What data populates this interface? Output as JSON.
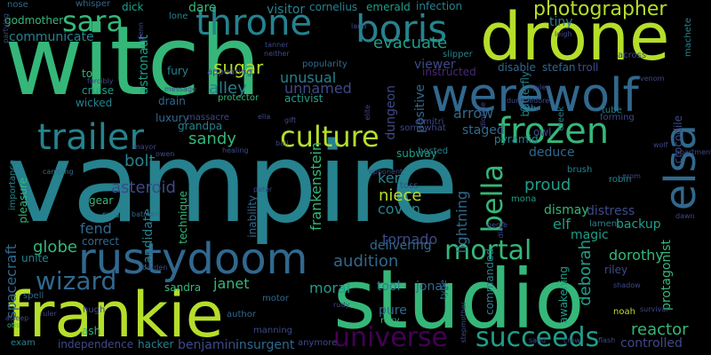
{
  "words": [
    "vampire",
    "witch",
    "studio",
    "drone",
    "frankie",
    "werewolf",
    "rustydoom",
    "throne",
    "boris",
    "frozen",
    "trailer",
    "culture",
    "elsa",
    "universe",
    "succeeds",
    "mortal",
    "wizard",
    "bella",
    "sara",
    "photographer",
    "audition",
    "globe",
    "spacecraft",
    "frankenstein",
    "evacuate",
    "sandy",
    "reactor",
    "deborah",
    "dorothy",
    "unnamed",
    "alley",
    "unusual",
    "sugar",
    "asteroid",
    "bolt",
    "lightning",
    "arrow",
    "candidate",
    "janet",
    "niece",
    "coven",
    "kent",
    "fend",
    "moral",
    "tornado",
    "proud",
    "elf",
    "distress",
    "backup",
    "dismay",
    "delivering",
    "jonas",
    "tool",
    "pure",
    "staged",
    "communicate",
    "tiny",
    "viewer",
    "astronaut",
    "dare",
    "visitor",
    "cornelius",
    "emerald",
    "infection",
    "godmother",
    "whisper",
    "dick",
    "nose",
    "toll",
    "fury",
    "cruise",
    "wicked",
    "drain",
    "luxury",
    "grandpa",
    "activist",
    "protector",
    "pyramid",
    "deduce",
    "owl",
    "magic",
    "riley",
    "sandra",
    "motor",
    "insurgent",
    "benjamin",
    "hacker",
    "independence",
    "ash",
    "exam",
    "author",
    "roxy",
    "noah",
    "controlled",
    "technique",
    "inability",
    "pleasure",
    "unite",
    "correct",
    "gear",
    "swan",
    "batman",
    "importance",
    "camping",
    "hugh",
    "otis",
    "spell",
    "instructed",
    "positive",
    "dungeon",
    "disable",
    "stefan",
    "troll",
    "tube",
    "cub",
    "butterfly",
    "crocodile",
    "protagonist",
    "awakening",
    "commanded",
    "type",
    "subway",
    "hosted",
    "toss",
    "mona",
    "robin",
    "brush",
    "lament",
    "creek",
    "machete",
    "lone",
    "slipper",
    "glenn",
    "anymore",
    "manning",
    "massacre",
    "dimitri",
    "somewhat",
    "forming",
    "shadow",
    "survival",
    "leigh",
    "popularity",
    "across",
    "message",
    "tanner",
    "neither",
    "appearing",
    "forcibly",
    "dioxide",
    "opponent",
    "healing",
    "genre",
    "apartment",
    "rudy",
    "elite",
    "stepmother",
    "diary",
    "partying",
    "asleep",
    "burden",
    "ruler",
    "dumbledore",
    "jules",
    "peter",
    "ella",
    "gift",
    "ball",
    "land",
    "venom",
    "prom",
    "dawn",
    "wolf",
    "mayor",
    "owen",
    "sand",
    "crow",
    "flash"
  ],
  "palette": [
    "#440154",
    "#482878",
    "#3e4989",
    "#31688e",
    "#26828e",
    "#1f9e89",
    "#35b779",
    "#6ece58",
    "#b5de2b",
    "#fde725"
  ]
}
